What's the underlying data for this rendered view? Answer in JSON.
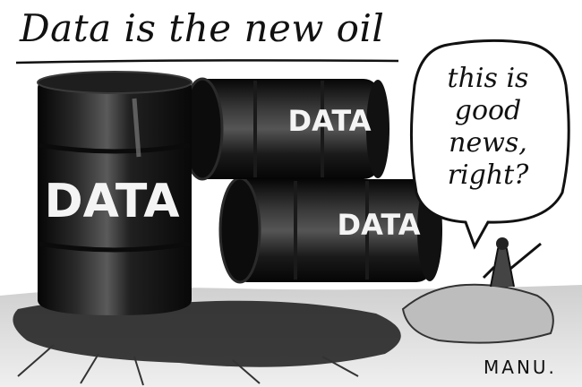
{
  "cartoon": {
    "caption": "Data is the new oil",
    "barrel_labels": {
      "front": "DATA",
      "top": "DATA",
      "middle": "DATA"
    },
    "speech_bubble_lines": [
      "this is",
      "good",
      "news,",
      "right?"
    ],
    "signature": "MANU."
  }
}
